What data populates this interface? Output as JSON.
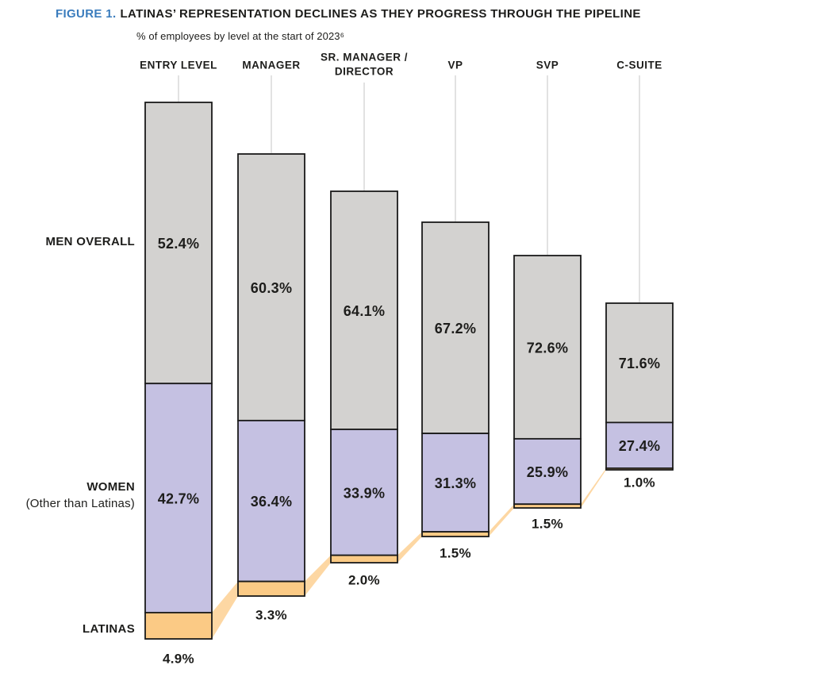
{
  "chart_data": {
    "type": "bar",
    "subtype": "stacked-pipeline",
    "figure_label": "FIGURE 1.",
    "title": "LATINAS’ REPRESENTATION DECLINES AS THEY PROGRESS THROUGH THE PIPELINE",
    "subtitle": "% of employees by level at the start of 2023⁶",
    "unit": "%",
    "grid": false,
    "legend_position": "left",
    "categories": [
      "ENTRY LEVEL",
      "MANAGER",
      "SR. MANAGER / DIRECTOR",
      "VP",
      "SVP",
      "C-SUITE"
    ],
    "header_lines": [
      [
        "ENTRY LEVEL"
      ],
      [
        "MANAGER"
      ],
      [
        "SR. MANAGER /",
        "DIRECTOR"
      ],
      [
        "VP"
      ],
      [
        "SVP"
      ],
      [
        "C-SUITE"
      ]
    ],
    "series": [
      {
        "name": "MEN OVERALL",
        "color": "#d3d2d0",
        "values": [
          52.4,
          60.3,
          64.1,
          67.2,
          72.6,
          71.6
        ]
      },
      {
        "name": "WOMEN (Other than Latinas)",
        "color": "#c5c1e2",
        "values": [
          42.7,
          36.4,
          33.9,
          31.3,
          25.9,
          27.4
        ]
      },
      {
        "name": "LATINAS",
        "color": "#fbca85",
        "values": [
          4.9,
          3.3,
          2.0,
          1.5,
          1.5,
          1.0
        ]
      }
    ],
    "row_labels": {
      "men": "MEN OVERALL",
      "women_line1": "WOMEN",
      "women_line2": "(Other than Latinas)",
      "latinas": "LATINAS"
    },
    "colors": {
      "figure_label_blue": "#3a7cbd",
      "men_gray": "#d3d2d0",
      "women_purple": "#c5c1e2",
      "latinas_orange": "#fbca85",
      "flow_ribbon": "#fdd7a3",
      "bar_border": "#1a1a1a",
      "header_line": "#cfcfcf",
      "text": "#1d1d1b"
    }
  }
}
